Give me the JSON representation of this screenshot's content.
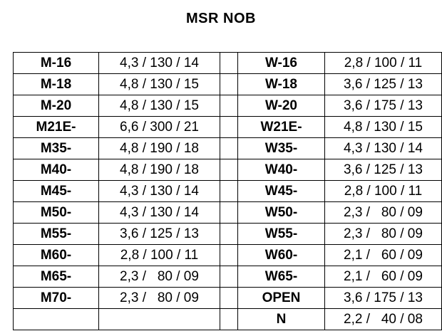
{
  "title": "MSR NOB",
  "rows": [
    {
      "m_code": "M-16",
      "m_value": "4,3 / 130 / 14",
      "w_code": "W-16",
      "w_value": "2,8 / 100 / 11"
    },
    {
      "m_code": "M-18",
      "m_value": "4,8 / 130 / 15",
      "w_code": "W-18",
      "w_value": "3,6 / 125 / 13"
    },
    {
      "m_code": "M-20",
      "m_value": "4,8 / 130 / 15",
      "w_code": "W-20",
      "w_value": "3,6 / 175 / 13"
    },
    {
      "m_code": "M21E-",
      "m_value": "6,6 / 300 / 21",
      "w_code": "W21E-",
      "w_value": "4,8 / 130 / 15"
    },
    {
      "m_code": "M35-",
      "m_value": "4,8 / 190 / 18",
      "w_code": "W35-",
      "w_value": "4,3 / 130 / 14"
    },
    {
      "m_code": "M40-",
      "m_value": "4,8 / 190 / 18",
      "w_code": "W40-",
      "w_value": "3,6 / 125 / 13"
    },
    {
      "m_code": "M45-",
      "m_value": "4,3 / 130 / 14",
      "w_code": "W45-",
      "w_value": "2,8 / 100 / 11"
    },
    {
      "m_code": "M50-",
      "m_value": "4,3 / 130 / 14",
      "w_code": "W50-",
      "w_value": "2,3 /   80 / 09"
    },
    {
      "m_code": "M55-",
      "m_value": "3,6 / 125 / 13",
      "w_code": "W55-",
      "w_value": "2,3 /   80 / 09"
    },
    {
      "m_code": "M60-",
      "m_value": "2,8 / 100 / 11",
      "w_code": "W60-",
      "w_value": "2,1 /   60 / 09"
    },
    {
      "m_code": "M65-",
      "m_value": "2,3 /   80 / 09",
      "w_code": "W65-",
      "w_value": "2,1 /   60 / 09"
    },
    {
      "m_code": "M70-",
      "m_value": "2,3 /   80 / 09",
      "w_code": "OPEN",
      "w_value": "3,6 / 175 / 13"
    },
    {
      "m_code": "",
      "m_value": "",
      "w_code": "N",
      "w_value": "2,2 /   40 / 08"
    }
  ]
}
